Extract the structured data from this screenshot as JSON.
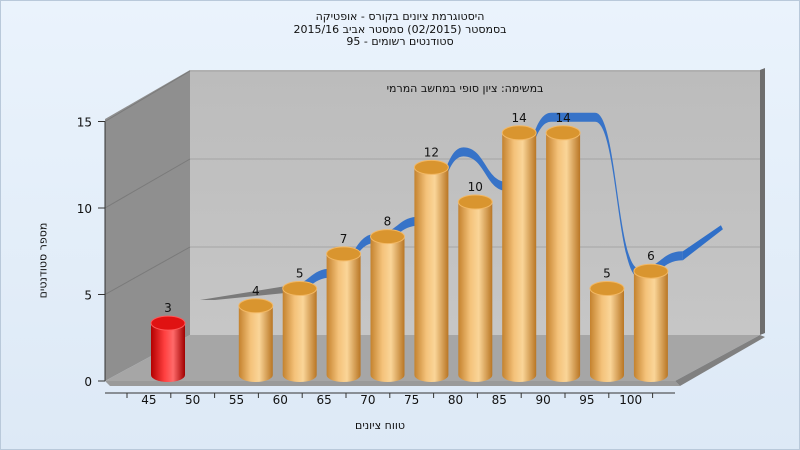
{
  "chart_data": {
    "type": "bar",
    "title_lines": [
      "היסטוגרמת ציונים בקורס - אופטיקה",
      "בסמסטר (02/2015) סמסטר אביב 2015/16",
      "סטודנטים רשומים - 95"
    ],
    "annotation": "במשימה: ציון סופי במחשב המרמי",
    "xlabel": "טווח ציונים",
    "ylabel": "מספר סטודנטים",
    "categories": [
      "45",
      "50",
      "55",
      "60",
      "65",
      "70",
      "75",
      "80",
      "85",
      "90",
      "95",
      "100"
    ],
    "values": [
      3,
      null,
      4,
      5,
      7,
      8,
      12,
      10,
      14,
      14,
      5,
      6
    ],
    "highlight_category": "45",
    "yticks": [
      0,
      5,
      10,
      15
    ],
    "ylim": [
      0,
      15
    ],
    "grid": true,
    "colors": {
      "bar": "#e7a64d",
      "highlight": "#e51a1a",
      "curve": "#2f6fc8",
      "curve_start": "#7a7a7a"
    }
  }
}
